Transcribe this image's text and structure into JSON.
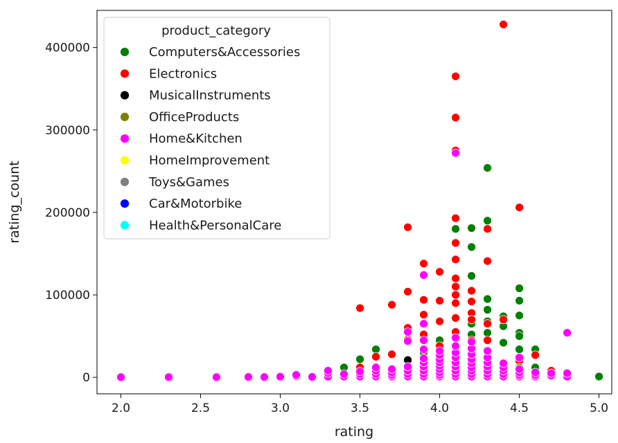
{
  "chart_data": {
    "type": "scatter",
    "xlabel": "rating",
    "ylabel": "rating_count",
    "xlim": [
      1.85,
      5.08
    ],
    "ylim": [
      -20000,
      445000
    ],
    "x_ticks": [
      2.0,
      2.5,
      3.0,
      3.5,
      4.0,
      4.5,
      5.0
    ],
    "x_tick_labels": [
      "2.0",
      "2.5",
      "3.0",
      "3.5",
      "4.0",
      "4.5",
      "5.0"
    ],
    "y_ticks": [
      0,
      100000,
      200000,
      300000,
      400000
    ],
    "y_tick_labels": [
      "0",
      "100000",
      "200000",
      "300000",
      "400000"
    ],
    "grid": false,
    "legend": {
      "title": "product_category",
      "placement": "top-left"
    },
    "series": [
      {
        "name": "Computers&Accessories",
        "color": "#008000",
        "points": [
          [
            3.4,
            12000
          ],
          [
            3.5,
            22000
          ],
          [
            3.6,
            34000
          ],
          [
            3.8,
            14000
          ],
          [
            3.9,
            30000
          ],
          [
            4.0,
            45000
          ],
          [
            4.1,
            25000
          ],
          [
            4.1,
            180000
          ],
          [
            4.2,
            181000
          ],
          [
            4.2,
            158000
          ],
          [
            4.2,
            123000
          ],
          [
            4.2,
            65000
          ],
          [
            4.2,
            52000
          ],
          [
            4.3,
            254000
          ],
          [
            4.3,
            190000
          ],
          [
            4.3,
            95000
          ],
          [
            4.3,
            82000
          ],
          [
            4.3,
            68000
          ],
          [
            4.3,
            54000
          ],
          [
            4.4,
            74000
          ],
          [
            4.4,
            62000
          ],
          [
            4.4,
            42000
          ],
          [
            4.5,
            108000
          ],
          [
            4.5,
            93000
          ],
          [
            4.5,
            75000
          ],
          [
            4.5,
            54000
          ],
          [
            4.5,
            50000
          ],
          [
            4.5,
            34000
          ],
          [
            4.6,
            34000
          ],
          [
            4.6,
            12000
          ],
          [
            5.0,
            1000
          ]
        ]
      },
      {
        "name": "Electronics",
        "color": "#ff0000",
        "points": [
          [
            3.5,
            84000
          ],
          [
            3.5,
            12000
          ],
          [
            3.6,
            25000
          ],
          [
            3.7,
            88000
          ],
          [
            3.7,
            28000
          ],
          [
            3.8,
            182000
          ],
          [
            3.8,
            104000
          ],
          [
            3.8,
            60000
          ],
          [
            3.8,
            46000
          ],
          [
            3.9,
            138000
          ],
          [
            3.9,
            94000
          ],
          [
            3.9,
            76000
          ],
          [
            3.9,
            52000
          ],
          [
            4.0,
            128000
          ],
          [
            4.0,
            93000
          ],
          [
            4.0,
            68000
          ],
          [
            4.0,
            38000
          ],
          [
            4.1,
            365000
          ],
          [
            4.1,
            315000
          ],
          [
            4.1,
            275000
          ],
          [
            4.1,
            193000
          ],
          [
            4.1,
            163000
          ],
          [
            4.1,
            143000
          ],
          [
            4.1,
            120000
          ],
          [
            4.1,
            110000
          ],
          [
            4.1,
            100000
          ],
          [
            4.1,
            90000
          ],
          [
            4.1,
            72000
          ],
          [
            4.1,
            55000
          ],
          [
            4.2,
            105000
          ],
          [
            4.2,
            92000
          ],
          [
            4.2,
            78000
          ],
          [
            4.2,
            70000
          ],
          [
            4.2,
            45000
          ],
          [
            4.3,
            180000
          ],
          [
            4.3,
            141000
          ],
          [
            4.3,
            65000
          ],
          [
            4.3,
            45000
          ],
          [
            4.4,
            428000
          ],
          [
            4.4,
            70000
          ],
          [
            4.5,
            206000
          ],
          [
            4.5,
            20000
          ],
          [
            4.6,
            27000
          ],
          [
            4.7,
            8000
          ]
        ]
      },
      {
        "name": "MusicalInstruments",
        "color": "#000000",
        "points": [
          [
            3.8,
            21000
          ],
          [
            4.1,
            3000
          ],
          [
            4.3,
            2000
          ]
        ]
      },
      {
        "name": "OfficeProducts",
        "color": "#808000",
        "points": [
          [
            4.2,
            10000
          ],
          [
            4.3,
            8000
          ],
          [
            4.4,
            5000
          ],
          [
            4.5,
            12000
          ]
        ]
      },
      {
        "name": "Home&Kitchen",
        "color": "#ff00ff",
        "points": [
          [
            2.0,
            200
          ],
          [
            2.3,
            300
          ],
          [
            2.6,
            300
          ],
          [
            2.8,
            500
          ],
          [
            2.9,
            400
          ],
          [
            3.0,
            800
          ],
          [
            3.1,
            1500
          ],
          [
            3.1,
            3000
          ],
          [
            3.2,
            600
          ],
          [
            3.3,
            800
          ],
          [
            3.3,
            5000
          ],
          [
            3.3,
            8000
          ],
          [
            3.4,
            1000
          ],
          [
            3.4,
            4000
          ],
          [
            3.5,
            1000
          ],
          [
            3.5,
            4000
          ],
          [
            3.5,
            7000
          ],
          [
            3.6,
            1000
          ],
          [
            3.6,
            4000
          ],
          [
            3.6,
            8000
          ],
          [
            3.6,
            12000
          ],
          [
            3.7,
            1000
          ],
          [
            3.7,
            3000
          ],
          [
            3.7,
            6000
          ],
          [
            3.7,
            10000
          ],
          [
            3.8,
            1000
          ],
          [
            3.8,
            4000
          ],
          [
            3.8,
            8000
          ],
          [
            3.8,
            13000
          ],
          [
            3.8,
            44000
          ],
          [
            3.8,
            55000
          ],
          [
            3.9,
            1000
          ],
          [
            3.9,
            4000
          ],
          [
            3.9,
            8000
          ],
          [
            3.9,
            13000
          ],
          [
            3.9,
            18000
          ],
          [
            3.9,
            23000
          ],
          [
            3.9,
            34000
          ],
          [
            3.9,
            45000
          ],
          [
            3.9,
            65000
          ],
          [
            3.9,
            124000
          ],
          [
            4.0,
            1000
          ],
          [
            4.0,
            3000
          ],
          [
            4.0,
            6000
          ],
          [
            4.0,
            10000
          ],
          [
            4.0,
            14000
          ],
          [
            4.0,
            18000
          ],
          [
            4.0,
            22000
          ],
          [
            4.0,
            27000
          ],
          [
            4.0,
            32000
          ],
          [
            4.1,
            1000
          ],
          [
            4.1,
            4000
          ],
          [
            4.1,
            8000
          ],
          [
            4.1,
            13000
          ],
          [
            4.1,
            18000
          ],
          [
            4.1,
            24000
          ],
          [
            4.1,
            30000
          ],
          [
            4.1,
            38000
          ],
          [
            4.1,
            48000
          ],
          [
            4.1,
            272000
          ],
          [
            4.2,
            1000
          ],
          [
            4.2,
            4000
          ],
          [
            4.2,
            8000
          ],
          [
            4.2,
            12000
          ],
          [
            4.2,
            17000
          ],
          [
            4.2,
            22000
          ],
          [
            4.2,
            28000
          ],
          [
            4.2,
            35000
          ],
          [
            4.2,
            43000
          ],
          [
            4.3,
            1000
          ],
          [
            4.3,
            4000
          ],
          [
            4.3,
            8000
          ],
          [
            4.3,
            13000
          ],
          [
            4.3,
            18000
          ],
          [
            4.3,
            24000
          ],
          [
            4.3,
            32000
          ],
          [
            4.4,
            1000
          ],
          [
            4.4,
            4000
          ],
          [
            4.4,
            8000
          ],
          [
            4.4,
            12000
          ],
          [
            4.4,
            17000
          ],
          [
            4.5,
            1000
          ],
          [
            4.5,
            3000
          ],
          [
            4.5,
            6000
          ],
          [
            4.5,
            10000
          ],
          [
            4.5,
            24000
          ],
          [
            4.6,
            1000
          ],
          [
            4.6,
            3000
          ],
          [
            4.6,
            6000
          ],
          [
            4.7,
            2000
          ],
          [
            4.7,
            5000
          ],
          [
            4.8,
            1000
          ],
          [
            4.8,
            5000
          ],
          [
            4.8,
            54000
          ]
        ]
      },
      {
        "name": "HomeImprovement",
        "color": "#ffff00",
        "points": []
      },
      {
        "name": "Toys&Games",
        "color": "#808080",
        "points": []
      },
      {
        "name": "Car&Motorbike",
        "color": "#0000ff",
        "points": []
      },
      {
        "name": "Health&PersonalCare",
        "color": "#00ffff",
        "points": []
      }
    ]
  }
}
